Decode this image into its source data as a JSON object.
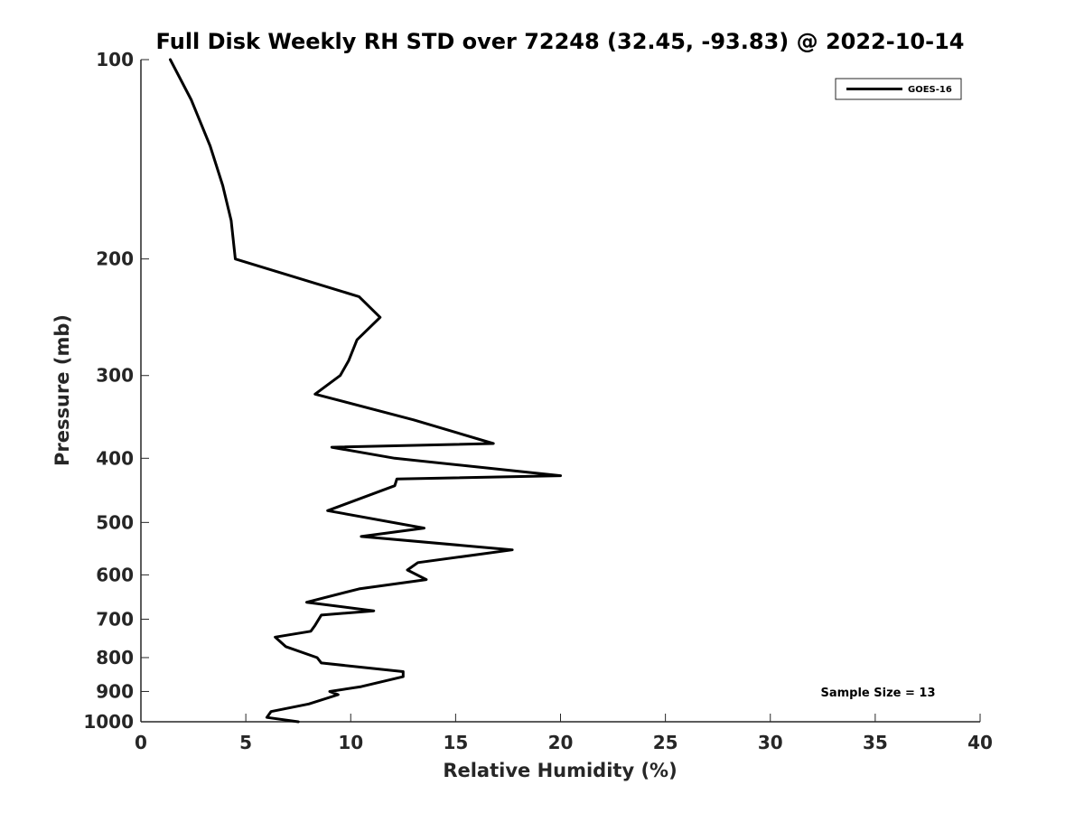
{
  "chart_data": {
    "type": "line",
    "title": "Full Disk Weekly RH STD over 72248 (32.45, -93.83) @ 2022-10-14",
    "xlabel": "Relative Humidity (%)",
    "ylabel": "Pressure (mb)",
    "xlim": [
      0,
      40
    ],
    "ylim": [
      100,
      1000
    ],
    "yscale": "log",
    "y_reversed": true,
    "xticks": [
      0,
      5,
      10,
      15,
      20,
      25,
      30,
      35,
      40
    ],
    "yticks": [
      100,
      200,
      300,
      400,
      500,
      600,
      700,
      800,
      900,
      1000
    ],
    "grid": false,
    "legend_position": "top-right",
    "series": [
      {
        "name": "GOES-16",
        "color": "#000000",
        "x": [
          1.4,
          2.4,
          3.3,
          3.9,
          4.3,
          4.5,
          10.4,
          11.4,
          10.3,
          9.9,
          9.5,
          8.3,
          13.0,
          16.8,
          9.1,
          12.1,
          20.0,
          12.2,
          12.1,
          8.9,
          13.5,
          10.5,
          17.7,
          13.2,
          12.7,
          13.6,
          10.4,
          7.9,
          11.1,
          8.6,
          8.3,
          8.1,
          6.4,
          6.9,
          8.4,
          8.6,
          12.5,
          12.5,
          10.5,
          9.0,
          9.4,
          8.0,
          6.2,
          6.0,
          7.5
        ],
        "y": [
          100,
          115,
          135,
          155,
          175,
          200,
          228,
          245,
          265,
          285,
          300,
          320,
          350,
          380,
          385,
          400,
          425,
          430,
          440,
          480,
          510,
          525,
          550,
          575,
          590,
          610,
          630,
          660,
          680,
          690,
          715,
          730,
          745,
          770,
          800,
          815,
          840,
          855,
          885,
          900,
          910,
          940,
          965,
          985,
          1000
        ]
      }
    ],
    "annotations": [
      "Sample Size = 13"
    ]
  }
}
